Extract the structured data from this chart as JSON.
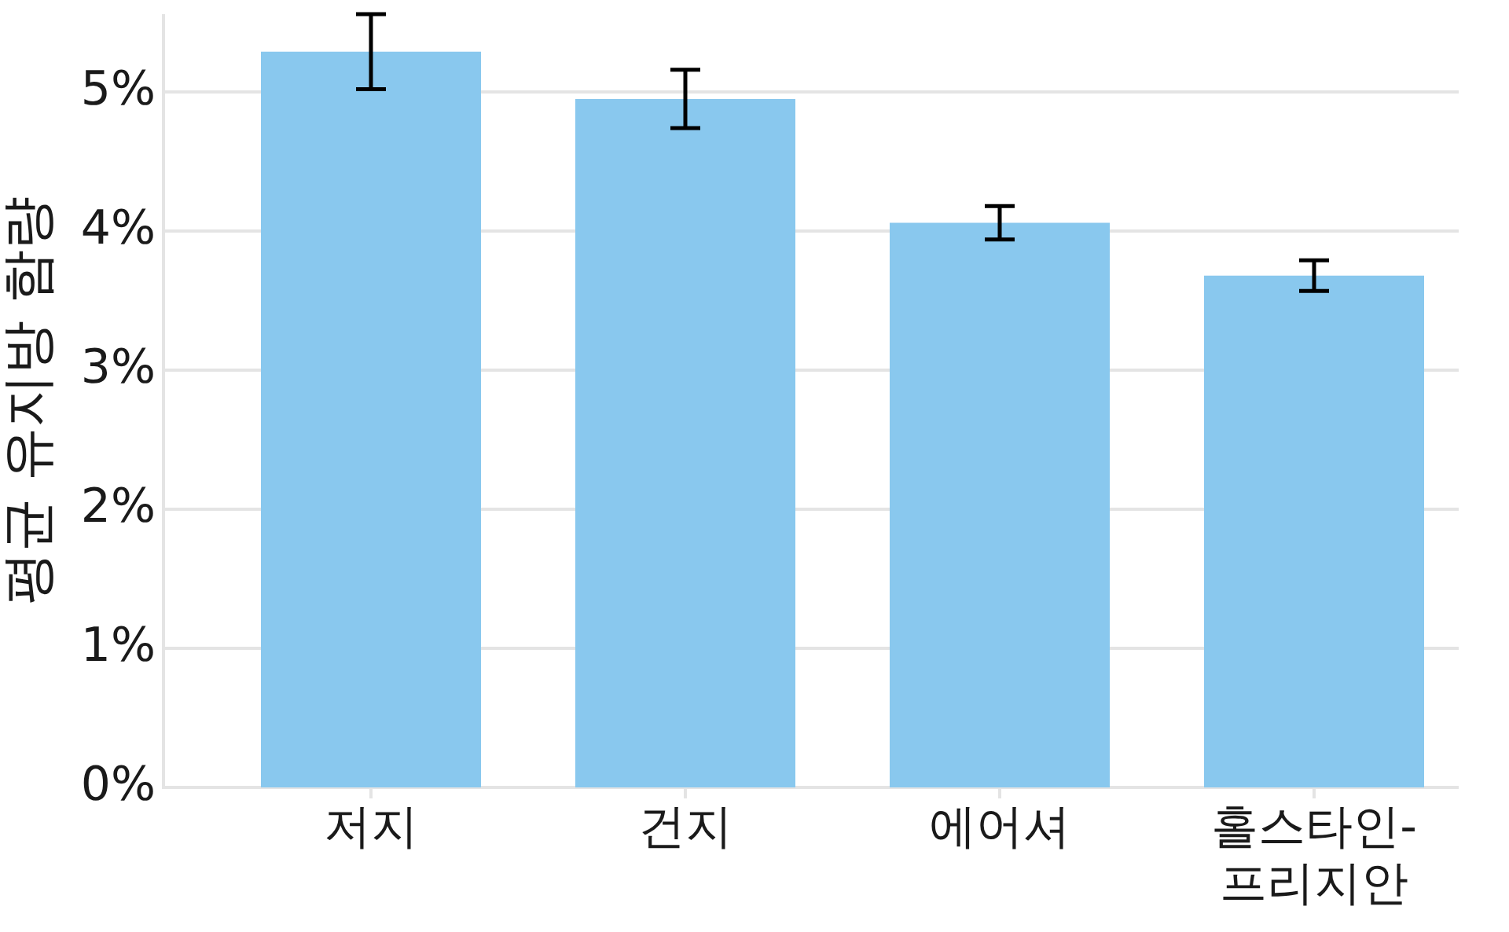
{
  "chart_data": {
    "type": "bar",
    "ylabel": "평균 유지방 함량",
    "categories": [
      "저지",
      "건지",
      "에어셔",
      "홀스타인-프리지안"
    ],
    "values": [
      5.29,
      4.95,
      4.06,
      3.68
    ],
    "errors": [
      0.27,
      0.21,
      0.12,
      0.11
    ],
    "color": "#89c8ee",
    "ylim": [
      0,
      5.56
    ],
    "yticks": [
      {
        "value": 0,
        "label": "0%"
      },
      {
        "value": 1,
        "label": "1%"
      },
      {
        "value": 2,
        "label": "2%"
      },
      {
        "value": 3,
        "label": "3%"
      },
      {
        "value": 4,
        "label": "4%"
      },
      {
        "value": 5,
        "label": "5%"
      }
    ],
    "grid": "y"
  }
}
